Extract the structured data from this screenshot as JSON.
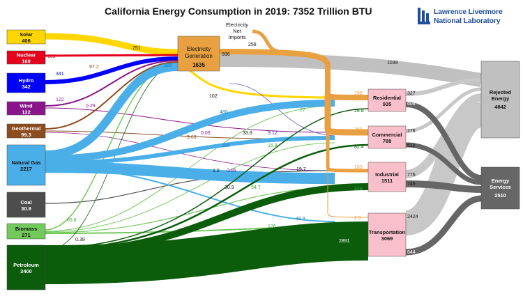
{
  "title": "California Energy Consumption in 2019: 7352 Trillion BTU",
  "logo": {
    "line1": "Lawrence Livermore",
    "line2": "National Laboratory",
    "mark": "llnl-logo-icon"
  },
  "sources": [
    {
      "id": "solar",
      "name": "Solar",
      "value": "406",
      "color": "#ffd700"
    },
    {
      "id": "nuclear",
      "name": "Nuclear",
      "value": "169",
      "color": "#e5001b"
    },
    {
      "id": "hydro",
      "name": "Hydro",
      "value": "342",
      "color": "#0000ff"
    },
    {
      "id": "wind",
      "name": "Wind",
      "value": "122",
      "color": "#8a148a"
    },
    {
      "id": "geothermal",
      "name": "Geothermal",
      "value": "99.3",
      "color": "#8c4c1f"
    },
    {
      "id": "natural-gas",
      "name": "Natural Gas",
      "value": "2217",
      "color": "#4aaee8"
    },
    {
      "id": "coal",
      "name": "Coal",
      "value": "30.9",
      "color": "#4d4d4d"
    },
    {
      "id": "biomass",
      "name": "Biomass",
      "value": "271",
      "color": "#73c95c"
    },
    {
      "id": "petroleum",
      "name": "Petroleum",
      "value": "3400",
      "color": "#0b5d0b"
    }
  ],
  "electricity": {
    "name": "Electricity Generation",
    "value": "1635",
    "color": "#e8a040",
    "imports_label": "Electricity Net Imports",
    "imports_value": "258"
  },
  "sectors": [
    {
      "id": "residential",
      "name": "Residential",
      "value": "935",
      "color": "#f9c0cb"
    },
    {
      "id": "commercial",
      "name": "Commercial",
      "value": "788",
      "color": "#f9c0cb"
    },
    {
      "id": "industrial",
      "name": "Industrial",
      "value": "1511",
      "color": "#f9c0cb"
    },
    {
      "id": "transportation",
      "name": "Transportation",
      "value": "3069",
      "color": "#f9c0cb"
    }
  ],
  "outputs": [
    {
      "id": "rejected",
      "name": "Rejected Energy",
      "value": "4842",
      "color": "#c0c0c0"
    },
    {
      "id": "services",
      "name": "Energy Services",
      "value": "2510",
      "color": "#666666"
    }
  ],
  "flow_labels": {
    "solar_elec": "251",
    "nuclear_elec": "169",
    "hydro_elec": "341",
    "wind_elec": "122",
    "geo_elec": "97.2",
    "ng_elec": "588",
    "elec_rejected": "1039",
    "elec_out": "596",
    "solar_res": "102",
    "ng_res": "480",
    "ng_com": "285",
    "ng_ind": "836",
    "wind_com": "0.29",
    "geo_com": "9.63",
    "geo_ind_a": "0.05",
    "geo_ind_b": "0.05",
    "petro_res": "33.6",
    "petro_com": "9.12",
    "coal_ind": "1.2",
    "petro_ind": "19.7",
    "coal_ind2": "30.9",
    "bio_res": "27",
    "bio_com": "16.8",
    "bio_ind": "34.7",
    "bio_trans": "126",
    "bio_elec": "66.8",
    "petro_elec": "0.39",
    "ng_trans": "48.9",
    "petro_trans": "2891",
    "elec_trans": "2.6",
    "elec_res": "299",
    "elec_com": "390",
    "elec_ind": "163",
    "petro_res2": "26.8",
    "petro_com2": "82.4",
    "petro_ind2": "426",
    "res_rej": "327",
    "res_srv": "608",
    "com_rej": "276",
    "com_srv": "512",
    "ind_rej": "776",
    "ind_srv": "745",
    "trans_rej": "2424",
    "trans_srv": "644"
  }
}
